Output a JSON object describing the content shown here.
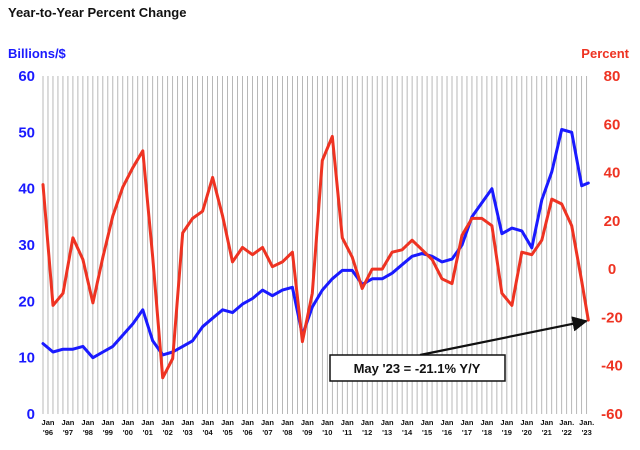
{
  "chart_data": {
    "type": "line",
    "title": "Year-to-Year Percent Change",
    "y_left_label": "Billions/$",
    "y_right_label": "Percent",
    "y_left_range": [
      0,
      60
    ],
    "y_right_range": [
      -60,
      80
    ],
    "y_left_ticks": [
      "0",
      "10",
      "20",
      "30",
      "40",
      "50",
      "60"
    ],
    "y_right_ticks": [
      "-60",
      "-40",
      "-20",
      "0",
      "20",
      "40",
      "60",
      "80"
    ],
    "x_ticks": [
      {
        "top": "Jan",
        "bottom": "'96"
      },
      {
        "top": "Jan",
        "bottom": "'97"
      },
      {
        "top": "Jan",
        "bottom": "'98"
      },
      {
        "top": "Jan",
        "bottom": "'99"
      },
      {
        "top": "Jan",
        "bottom": "'00"
      },
      {
        "top": "Jan",
        "bottom": "'01"
      },
      {
        "top": "Jan",
        "bottom": "'02"
      },
      {
        "top": "Jan",
        "bottom": "'03"
      },
      {
        "top": "Jan",
        "bottom": "'04"
      },
      {
        "top": "Jan",
        "bottom": "'05"
      },
      {
        "top": "Jan",
        "bottom": "'06"
      },
      {
        "top": "Jan",
        "bottom": "'07"
      },
      {
        "top": "Jan",
        "bottom": "'08"
      },
      {
        "top": "Jan",
        "bottom": "'09"
      },
      {
        "top": "Jan",
        "bottom": "'10"
      },
      {
        "top": "Jan",
        "bottom": "'11"
      },
      {
        "top": "Jan",
        "bottom": "'12"
      },
      {
        "top": "Jan",
        "bottom": "'13"
      },
      {
        "top": "Jan",
        "bottom": "'14"
      },
      {
        "top": "Jan",
        "bottom": "'15"
      },
      {
        "top": "Jan",
        "bottom": "'16"
      },
      {
        "top": "Jan",
        "bottom": "'17"
      },
      {
        "top": "Jan",
        "bottom": "'18"
      },
      {
        "top": "Jan",
        "bottom": "'19"
      },
      {
        "top": "Jan",
        "bottom": "'20"
      },
      {
        "top": "Jan",
        "bottom": "'21"
      },
      {
        "top": "Jan.",
        "bottom": "'22"
      },
      {
        "top": "Jan.",
        "bottom": "'23"
      }
    ],
    "x_start": "1996-01",
    "x_end": "2023-05",
    "grid": "vertical",
    "series": [
      {
        "axis": "left",
        "color": "#1a1aff",
        "points": [
          [
            "1996-01",
            12.5
          ],
          [
            "1996-07",
            11
          ],
          [
            "1997-01",
            11.5
          ],
          [
            "1997-07",
            11.5
          ],
          [
            "1998-01",
            12
          ],
          [
            "1998-07",
            10
          ],
          [
            "1999-01",
            11
          ],
          [
            "1999-07",
            12
          ],
          [
            "2000-01",
            14
          ],
          [
            "2000-07",
            16
          ],
          [
            "2001-01",
            18.5
          ],
          [
            "2001-07",
            13
          ],
          [
            "2002-01",
            10.5
          ],
          [
            "2002-07",
            11
          ],
          [
            "2003-01",
            12
          ],
          [
            "2003-07",
            13
          ],
          [
            "2004-01",
            15.5
          ],
          [
            "2004-07",
            17
          ],
          [
            "2005-01",
            18.5
          ],
          [
            "2005-07",
            18
          ],
          [
            "2006-01",
            19.5
          ],
          [
            "2006-07",
            20.5
          ],
          [
            "2007-01",
            22
          ],
          [
            "2007-07",
            21
          ],
          [
            "2008-01",
            22
          ],
          [
            "2008-07",
            22.5
          ],
          [
            "2009-01",
            14
          ],
          [
            "2009-07",
            19
          ],
          [
            "2010-01",
            22
          ],
          [
            "2010-07",
            24
          ],
          [
            "2011-01",
            25.5
          ],
          [
            "2011-07",
            25.5
          ],
          [
            "2012-01",
            23
          ],
          [
            "2012-07",
            24
          ],
          [
            "2013-01",
            24
          ],
          [
            "2013-07",
            25
          ],
          [
            "2014-01",
            26.5
          ],
          [
            "2014-07",
            28
          ],
          [
            "2015-01",
            28.5
          ],
          [
            "2015-07",
            28
          ],
          [
            "2016-01",
            27
          ],
          [
            "2016-07",
            27.5
          ],
          [
            "2017-01",
            30
          ],
          [
            "2017-07",
            35
          ],
          [
            "2018-01",
            37.5
          ],
          [
            "2018-07",
            40
          ],
          [
            "2019-01",
            32
          ],
          [
            "2019-07",
            33
          ],
          [
            "2020-01",
            32.5
          ],
          [
            "2020-07",
            29.5
          ],
          [
            "2021-01",
            38
          ],
          [
            "2021-07",
            43
          ],
          [
            "2022-01",
            50.5
          ],
          [
            "2022-07",
            50
          ],
          [
            "2023-01",
            40.5
          ],
          [
            "2023-05",
            41
          ]
        ]
      },
      {
        "axis": "right",
        "color": "#ee3322",
        "points": [
          [
            "1996-01",
            35
          ],
          [
            "1996-07",
            -15
          ],
          [
            "1997-01",
            -10
          ],
          [
            "1997-07",
            13
          ],
          [
            "1998-01",
            4
          ],
          [
            "1998-07",
            -14
          ],
          [
            "1999-01",
            5
          ],
          [
            "1999-07",
            22
          ],
          [
            "2000-01",
            34
          ],
          [
            "2000-07",
            42
          ],
          [
            "2001-01",
            49
          ],
          [
            "2001-07",
            5
          ],
          [
            "2002-01",
            -45
          ],
          [
            "2002-07",
            -37
          ],
          [
            "2003-01",
            15
          ],
          [
            "2003-07",
            21
          ],
          [
            "2004-01",
            24
          ],
          [
            "2004-07",
            38
          ],
          [
            "2005-01",
            22
          ],
          [
            "2005-07",
            3
          ],
          [
            "2006-01",
            9
          ],
          [
            "2006-07",
            6
          ],
          [
            "2007-01",
            9
          ],
          [
            "2007-07",
            1
          ],
          [
            "2008-01",
            3
          ],
          [
            "2008-07",
            7
          ],
          [
            "2009-01",
            -30
          ],
          [
            "2009-07",
            -10
          ],
          [
            "2010-01",
            45
          ],
          [
            "2010-07",
            55
          ],
          [
            "2011-01",
            13
          ],
          [
            "2011-07",
            5
          ],
          [
            "2012-01",
            -8
          ],
          [
            "2012-07",
            0
          ],
          [
            "2013-01",
            0
          ],
          [
            "2013-07",
            7
          ],
          [
            "2014-01",
            8
          ],
          [
            "2014-07",
            12
          ],
          [
            "2015-01",
            8
          ],
          [
            "2015-07",
            4
          ],
          [
            "2016-01",
            -4
          ],
          [
            "2016-07",
            -6
          ],
          [
            "2017-01",
            14
          ],
          [
            "2017-07",
            21
          ],
          [
            "2018-01",
            21
          ],
          [
            "2018-07",
            18
          ],
          [
            "2019-01",
            -10
          ],
          [
            "2019-07",
            -15
          ],
          [
            "2020-01",
            7
          ],
          [
            "2020-07",
            6
          ],
          [
            "2021-01",
            12
          ],
          [
            "2021-07",
            29
          ],
          [
            "2022-01",
            27
          ],
          [
            "2022-07",
            18
          ],
          [
            "2023-01",
            -5
          ],
          [
            "2023-05",
            -21.1
          ]
        ]
      }
    ],
    "annotation": {
      "text": "May '23 = -21.1% Y/Y",
      "points_to": {
        "series": 1,
        "x": "2023-05",
        "y": -21.1
      }
    },
    "colors": {
      "left_axis": "#1a1aff",
      "right_axis": "#ee3322",
      "gridline": "#9a9a9a",
      "text": "#111111"
    }
  }
}
